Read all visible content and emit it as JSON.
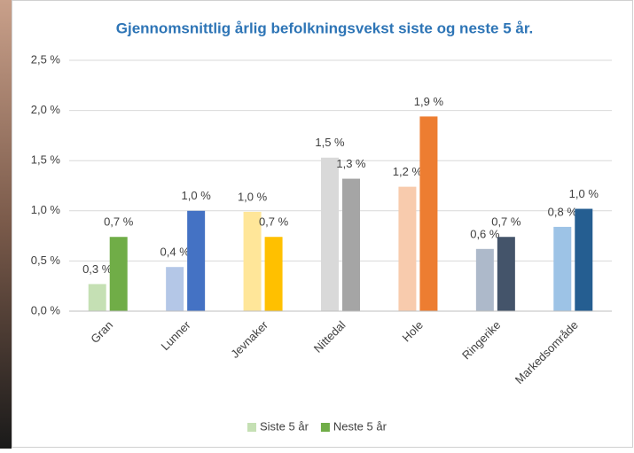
{
  "chart_data": {
    "type": "bar",
    "title": "Gjennomsnittlig årlig befolkningsvekst siste og neste 5 år.",
    "categories": [
      "Gran",
      "Lunner",
      "Jevnaker",
      "Nittedal",
      "Hole",
      "Ringerike",
      "Markedsområde"
    ],
    "series": [
      {
        "name": "Siste 5 år",
        "color": "#c5e0b4",
        "colors": [
          "#c5e0b4",
          "#b4c7e7",
          "#ffe699",
          "#d9d9d9",
          "#f8cbad",
          "#adb9ca",
          "#9dc3e6"
        ],
        "values": [
          0.27,
          0.44,
          0.99,
          1.53,
          1.24,
          0.62,
          0.84
        ],
        "value_labels": [
          "0,3 %",
          "0,4 %",
          "1,0 %",
          "1,5 %",
          "1,2 %",
          "0,6 %",
          "0,8 %"
        ]
      },
      {
        "name": "Neste 5 år",
        "color": "#70ad47",
        "colors": [
          "#70ad47",
          "#4472c4",
          "#ffc000",
          "#a5a5a5",
          "#ed7d31",
          "#44546a",
          "#255e91"
        ],
        "values": [
          0.74,
          1.0,
          0.74,
          1.32,
          1.94,
          0.74,
          1.02
        ],
        "value_labels": [
          "0,7 %",
          "1,0 %",
          "0,7 %",
          "1,3 %",
          "1,9 %",
          "0,7 %",
          "1,0 %"
        ]
      }
    ],
    "ylim": [
      0,
      2.5
    ],
    "yticks": [
      {
        "value": 0,
        "label": "0,0 %"
      },
      {
        "value": 0.5,
        "label": "0,5 %"
      },
      {
        "value": 1,
        "label": "1,0 %"
      },
      {
        "value": 1.5,
        "label": "1,5 %"
      },
      {
        "value": 2,
        "label": "2,0 %"
      },
      {
        "value": 2.5,
        "label": "2,5 %"
      }
    ],
    "grid": true,
    "legend": "bottom"
  }
}
